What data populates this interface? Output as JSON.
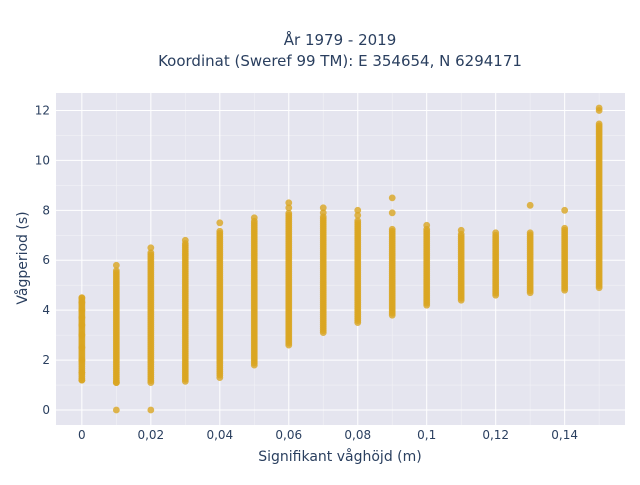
{
  "chart_data": {
    "type": "scatter",
    "title_lines": [
      "År 1979 - 2019",
      "Koordinat (Sweref 99 TM): E 354654, N 6294171"
    ],
    "xlabel": "Signifikant våghöjd (m)",
    "ylabel": "Vågperiod (s)",
    "xlim": [
      -0.0075,
      0.1575
    ],
    "ylim": [
      -0.6,
      12.7
    ],
    "x_ticks": [
      {
        "value": 0,
        "label": "0"
      },
      {
        "value": 0.02,
        "label": "0,02"
      },
      {
        "value": 0.04,
        "label": "0,04"
      },
      {
        "value": 0.06,
        "label": "0,06"
      },
      {
        "value": 0.08,
        "label": "0,08"
      },
      {
        "value": 0.1,
        "label": "0,1"
      },
      {
        "value": 0.12,
        "label": "0,12"
      },
      {
        "value": 0.14,
        "label": "0,14"
      }
    ],
    "y_ticks": [
      {
        "value": 0,
        "label": "0"
      },
      {
        "value": 2,
        "label": "2"
      },
      {
        "value": 4,
        "label": "4"
      },
      {
        "value": 6,
        "label": "6"
      },
      {
        "value": 8,
        "label": "8"
      },
      {
        "value": 10,
        "label": "10"
      },
      {
        "value": 12,
        "label": "12"
      }
    ],
    "grid": true,
    "marker_color": "#DAA520",
    "background_color": "#E5E5EF",
    "columns": [
      {
        "x": 0.0,
        "min": 1.2,
        "max": 4.5,
        "points": [
          1.2,
          1.5,
          2.0,
          2.5,
          3.0,
          3.4,
          3.7,
          4.0,
          4.3,
          4.5
        ]
      },
      {
        "x": 0.01,
        "min": 1.1,
        "max": 5.6,
        "points": [
          0.0,
          1.1,
          5.8
        ]
      },
      {
        "x": 0.02,
        "min": 1.1,
        "max": 6.3,
        "points": [
          0.0,
          6.5
        ]
      },
      {
        "x": 0.03,
        "min": 1.15,
        "max": 6.7,
        "points": [
          6.8
        ]
      },
      {
        "x": 0.04,
        "min": 1.4,
        "max": 7.2,
        "points": [
          1.3,
          7.5
        ]
      },
      {
        "x": 0.05,
        "min": 1.8,
        "max": 7.6,
        "points": [
          7.7
        ]
      },
      {
        "x": 0.06,
        "min": 2.6,
        "max": 7.9,
        "points": [
          8.1,
          8.3
        ]
      },
      {
        "x": 0.07,
        "min": 3.1,
        "max": 7.8,
        "points": [
          7.9,
          8.1
        ]
      },
      {
        "x": 0.08,
        "min": 3.5,
        "max": 7.6,
        "points": [
          7.8,
          8.0
        ]
      },
      {
        "x": 0.09,
        "min": 3.8,
        "max": 7.3,
        "points": [
          7.9,
          8.5
        ]
      },
      {
        "x": 0.1,
        "min": 4.2,
        "max": 7.3,
        "points": [
          7.4
        ]
      },
      {
        "x": 0.11,
        "min": 4.4,
        "max": 7.1,
        "points": [
          7.2
        ]
      },
      {
        "x": 0.12,
        "min": 4.6,
        "max": 7.0,
        "points": [
          7.1
        ]
      },
      {
        "x": 0.13,
        "min": 4.7,
        "max": 7.1,
        "points": [
          8.2
        ]
      },
      {
        "x": 0.14,
        "min": 4.8,
        "max": 7.3,
        "points": [
          8.0
        ]
      },
      {
        "x": 0.15,
        "min": 4.9,
        "max": 11.5,
        "points": [
          12.0,
          12.1
        ]
      }
    ]
  }
}
